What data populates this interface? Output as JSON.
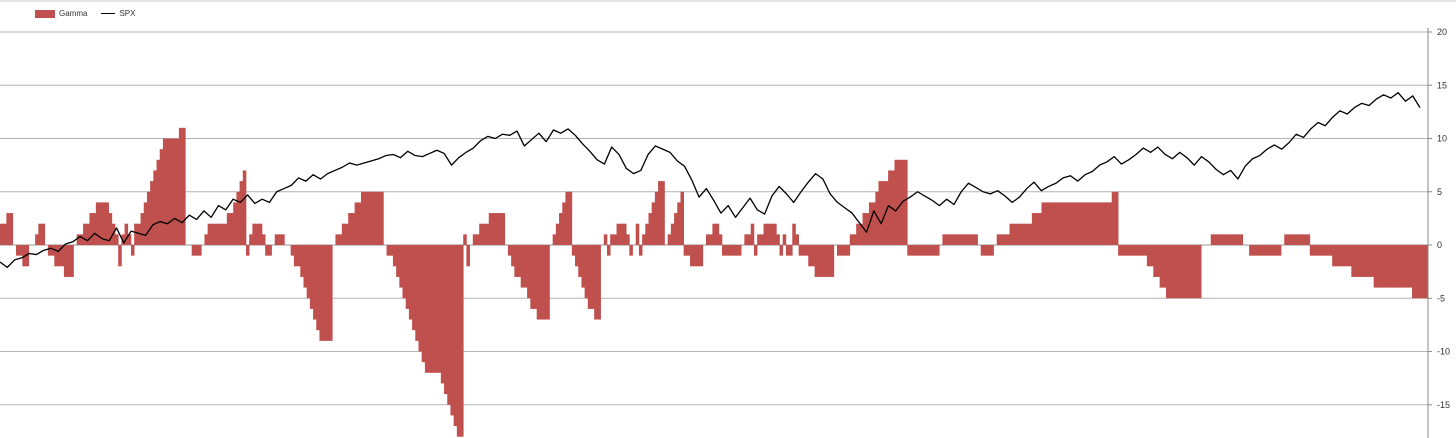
{
  "chart_data": {
    "type": "bar",
    "title": "",
    "xlabel": "",
    "ylabel": "",
    "ylim": [
      -18,
      20
    ],
    "yticks": [
      20,
      15,
      10,
      5,
      0,
      -5,
      -10,
      -15
    ],
    "grid": true,
    "legend_position": "top-left",
    "colors": {
      "Gamma": "#c0504d",
      "SPX": "#000000"
    },
    "series": [
      {
        "name": "Gamma",
        "type": "bar",
        "values": [
          2,
          2,
          3,
          3,
          0,
          -1,
          -1,
          -2,
          -2,
          0,
          0,
          1,
          2,
          2,
          0,
          -1,
          -1,
          -2,
          -2,
          -2,
          -3,
          -3,
          -3,
          0,
          1,
          1,
          2,
          2,
          3,
          3,
          4,
          4,
          4,
          4,
          3,
          2,
          1,
          -2,
          1,
          2,
          1,
          -1,
          2,
          2,
          3,
          4,
          5,
          6,
          7,
          8,
          9,
          10,
          10,
          10,
          10,
          10,
          11,
          11,
          0,
          0,
          -1,
          -1,
          -1,
          0,
          1,
          2,
          2,
          2,
          2,
          2,
          2,
          3,
          3,
          4,
          5,
          6,
          7,
          -1,
          1,
          2,
          2,
          2,
          1,
          -1,
          -1,
          0,
          1,
          1,
          1,
          0,
          0,
          -1,
          -2,
          -2,
          -3,
          -4,
          -5,
          -6,
          -7,
          -8,
          -9,
          -9,
          -9,
          -9,
          0,
          1,
          1,
          2,
          2,
          3,
          3,
          4,
          4,
          5,
          5,
          5,
          5,
          5,
          5,
          5,
          0,
          -1,
          -1,
          -2,
          -3,
          -4,
          -5,
          -6,
          -7,
          -8,
          -9,
          -10,
          -11,
          -12,
          -12,
          -12,
          -12,
          -12,
          -13,
          -14,
          -15,
          -16,
          -17,
          -18,
          -18,
          1,
          -2,
          0,
          1,
          1,
          2,
          2,
          2,
          3,
          3,
          3,
          3,
          3,
          0,
          -1,
          -2,
          -3,
          -3,
          -4,
          -4,
          -5,
          -6,
          -6,
          -7,
          -7,
          -7,
          -7,
          0,
          1,
          2,
          3,
          4,
          5,
          5,
          -1,
          -2,
          -3,
          -4,
          -5,
          -6,
          -6,
          -7,
          -7,
          0,
          1,
          -1,
          1,
          1,
          2,
          2,
          2,
          1,
          -1,
          0,
          2,
          -1,
          1,
          2,
          3,
          4,
          5,
          6,
          6,
          0,
          1,
          2,
          3,
          4,
          5,
          -1,
          -1,
          -2,
          -2,
          -2,
          -2,
          0,
          1,
          1,
          2,
          2,
          1,
          -1,
          -1,
          -1,
          -1,
          -1,
          -1,
          0,
          1,
          1,
          2,
          -1,
          1,
          1,
          2,
          2,
          2,
          2,
          1,
          -1,
          1,
          -1,
          -1,
          2,
          1,
          -1,
          -1,
          -1,
          -2,
          -2,
          -3,
          -3,
          -3,
          -3,
          -3,
          -3,
          0,
          -1,
          -1,
          -1,
          -1,
          1,
          1,
          2,
          2,
          3,
          3,
          4,
          4,
          5,
          6,
          6,
          6,
          7,
          7,
          8,
          8,
          8,
          8,
          -1,
          -1,
          -1,
          -1,
          -1,
          -1,
          -1,
          -1,
          -1,
          -1,
          0,
          1,
          1,
          1,
          1,
          1,
          1,
          1,
          1,
          1,
          1,
          1,
          0,
          -1,
          -1,
          -1,
          -1,
          0,
          1,
          1,
          1,
          1,
          2,
          2,
          2,
          2,
          2,
          2,
          2,
          3,
          3,
          3,
          4,
          4,
          4,
          4,
          4,
          4,
          4,
          4,
          4,
          4,
          4,
          4,
          4,
          4,
          4,
          4,
          4,
          4,
          4,
          4,
          4,
          4,
          5,
          5,
          -1,
          -1,
          -1,
          -1,
          -1,
          -1,
          -1,
          -1,
          -1,
          -2,
          -2,
          -3,
          -3,
          -4,
          -4,
          -5,
          -5,
          -5,
          -5,
          -5,
          -5,
          -5,
          -5,
          -5,
          -5,
          -5,
          0,
          0,
          0,
          1,
          1,
          1,
          1,
          1,
          1,
          1,
          1,
          1,
          1,
          0,
          0,
          -1,
          -1,
          -1,
          -1,
          -1,
          -1,
          -1,
          -1,
          -1,
          -1,
          0,
          1,
          1,
          1,
          1,
          1,
          1,
          1,
          1,
          -1,
          -1,
          -1,
          -1,
          -1,
          -1,
          -1,
          -2,
          -2,
          -2,
          -2,
          -2,
          -2,
          -3,
          -3,
          -3,
          -3,
          -3,
          -3,
          -3,
          -4,
          -4,
          -4,
          -4,
          -4,
          -4,
          -4,
          -4,
          -4,
          -4,
          -4,
          -4,
          -5,
          -5,
          -5,
          -5,
          -5
        ]
      },
      {
        "name": "SPX",
        "type": "line",
        "values": [
          -1.6,
          -2.1,
          -1.4,
          -1.2,
          -0.8,
          -0.9,
          -0.5,
          -0.3,
          -0.6,
          0.1,
          0.3,
          0.8,
          0.4,
          1.1,
          0.6,
          0.4,
          1.6,
          0.2,
          1.3,
          1.1,
          0.9,
          1.9,
          2.2,
          2.0,
          2.5,
          2.1,
          2.8,
          2.4,
          3.2,
          2.6,
          3.7,
          3.3,
          4.3,
          4.0,
          4.7,
          3.9,
          4.3,
          4.0,
          5.0,
          5.3,
          5.6,
          6.3,
          6.0,
          6.6,
          6.2,
          6.7,
          7.0,
          7.3,
          7.7,
          7.5,
          7.7,
          7.9,
          8.1,
          8.4,
          8.5,
          8.2,
          8.8,
          8.4,
          8.3,
          8.6,
          8.9,
          8.6,
          7.5,
          8.2,
          8.7,
          9.1,
          9.8,
          10.2,
          10.0,
          10.4,
          10.3,
          10.7,
          9.3,
          9.9,
          10.5,
          9.7,
          10.8,
          10.5,
          10.9,
          10.3,
          9.5,
          8.8,
          8.0,
          7.6,
          9.2,
          8.5,
          7.2,
          6.7,
          7.0,
          8.5,
          9.3,
          9.0,
          8.7,
          7.9,
          7.4,
          6.1,
          4.5,
          5.3,
          4.2,
          3.0,
          3.7,
          2.6,
          3.5,
          4.4,
          3.3,
          2.9,
          4.6,
          5.5,
          4.8,
          4.0,
          5.0,
          5.9,
          6.7,
          6.2,
          4.8,
          4.0,
          3.5,
          3.0,
          2.1,
          1.2,
          3.2,
          2.0,
          3.7,
          3.2,
          4.1,
          4.5,
          5.0,
          4.6,
          4.2,
          3.7,
          4.3,
          3.8,
          5.0,
          5.8,
          5.4,
          5.0,
          4.8,
          5.1,
          4.6,
          4.0,
          4.5,
          5.3,
          5.9,
          5.1,
          5.5,
          5.8,
          6.3,
          6.5,
          6.0,
          6.6,
          6.9,
          7.5,
          7.8,
          8.3,
          7.6,
          8.0,
          8.5,
          9.1,
          8.7,
          9.2,
          8.5,
          8.1,
          8.7,
          8.2,
          7.5,
          8.3,
          7.8,
          7.1,
          6.6,
          7.0,
          6.2,
          7.4,
          8.1,
          8.4,
          9.0,
          9.4,
          9.0,
          9.6,
          10.4,
          10.1,
          10.9,
          11.5,
          11.2,
          12.0,
          12.6,
          12.3,
          12.9,
          13.3,
          13.1,
          13.7,
          14.1,
          13.8,
          14.3,
          13.5,
          14.0,
          12.9
        ]
      }
    ]
  },
  "legend": [
    {
      "label": "Gamma"
    },
    {
      "label": "SPX"
    }
  ]
}
